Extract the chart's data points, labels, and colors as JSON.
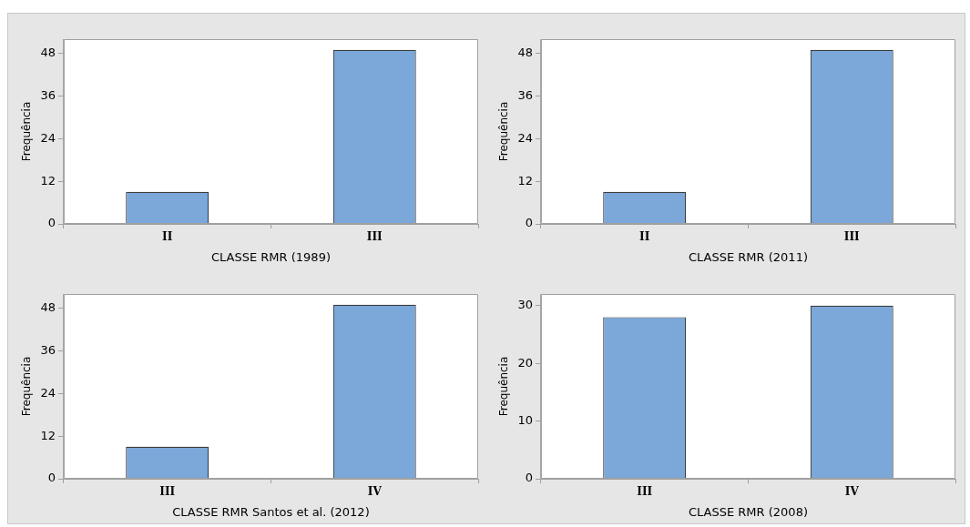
{
  "chart_data": [
    {
      "type": "bar",
      "xlabel": "CLASSE RMR (1989)",
      "ylabel": "Frequência",
      "categories": [
        "II",
        "III"
      ],
      "values": [
        9,
        49
      ],
      "color": "#7ba7d9",
      "ylim": [
        0,
        52
      ],
      "yticks": [
        0,
        12,
        24,
        36,
        48
      ],
      "grid": false,
      "legend": false
    },
    {
      "type": "bar",
      "xlabel": "CLASSE RMR (2011)",
      "ylabel": "Frequência",
      "categories": [
        "II",
        "III"
      ],
      "values": [
        9,
        49
      ],
      "color": "#7ba7d9",
      "ylim": [
        0,
        52
      ],
      "yticks": [
        0,
        12,
        24,
        36,
        48
      ],
      "grid": false,
      "legend": false
    },
    {
      "type": "bar",
      "xlabel": "CLASSE RMR Santos et al. (2012)",
      "ylabel": "Frequência",
      "categories": [
        "III",
        "IV"
      ],
      "values": [
        9,
        49
      ],
      "color": "#7ba7d9",
      "ylim": [
        0,
        52
      ],
      "yticks": [
        0,
        12,
        24,
        36,
        48
      ],
      "grid": false,
      "legend": false
    },
    {
      "type": "bar",
      "xlabel": "CLASSE RMR (2008)",
      "ylabel": "Frequência",
      "categories": [
        "III",
        "IV"
      ],
      "values": [
        28,
        30
      ],
      "color": "#7ba7d9",
      "ylim": [
        0,
        32
      ],
      "yticks": [
        0,
        10,
        20,
        30
      ],
      "grid": false,
      "legend": false
    }
  ]
}
